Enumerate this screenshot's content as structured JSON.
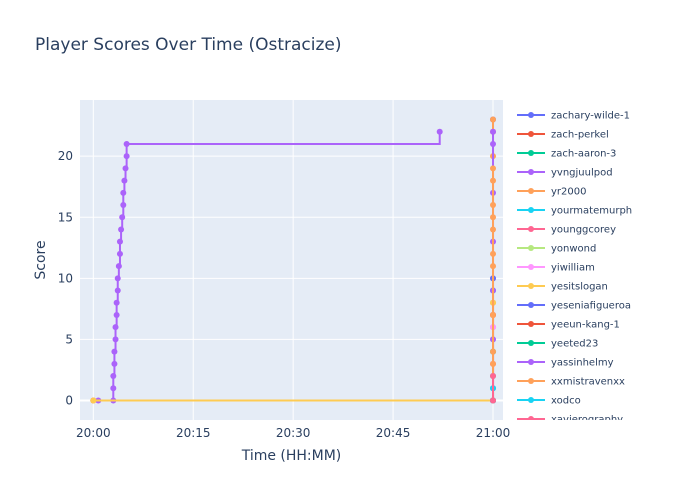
{
  "chart_data": {
    "type": "line",
    "title": "Player Scores Over Time (Ostracize)",
    "xlabel": "Time (HH:MM)",
    "ylabel": "Score",
    "x_unit": "time HH:MM",
    "xlim": [
      "19:58:00",
      "21:01:30"
    ],
    "ylim": [
      -1.6,
      24.6
    ],
    "x_ticks": [
      {
        "value": "20:00:00",
        "label": "20:00"
      },
      {
        "value": "20:15:00",
        "label": "20:15"
      },
      {
        "value": "20:30:00",
        "label": "20:30"
      },
      {
        "value": "20:45:00",
        "label": "20:45"
      },
      {
        "value": "21:00:00",
        "label": "21:00"
      }
    ],
    "y_ticks": [
      0,
      5,
      10,
      15,
      20
    ],
    "grid": true,
    "line_shape": "step",
    "legend_position": "right",
    "background_color": "#e5ecf6",
    "series": [
      {
        "name": "zachary-wilde-1",
        "color": "#636efa",
        "points": [
          [
            "21:00:00",
            0
          ],
          [
            "21:00:00",
            23
          ]
        ]
      },
      {
        "name": "zach-perkel",
        "color": "#ef553b",
        "points": [
          [
            "21:00:00",
            0
          ],
          [
            "21:00:00",
            7
          ]
        ]
      },
      {
        "name": "zach-aaron-3",
        "color": "#00cc96",
        "points": [
          [
            "21:00:00",
            0
          ],
          [
            "21:00:00",
            4
          ]
        ]
      },
      {
        "name": "yvngjuulpod",
        "color": "#ab63fa",
        "points": [
          [
            "20:00:00",
            0
          ],
          [
            "20:00:45",
            0
          ],
          [
            "20:03:00",
            0
          ],
          [
            "20:03:00",
            1
          ],
          [
            "20:03:00",
            2
          ],
          [
            "20:03:10",
            3
          ],
          [
            "20:03:10",
            4
          ],
          [
            "20:03:20",
            5
          ],
          [
            "20:03:20",
            6
          ],
          [
            "20:03:30",
            7
          ],
          [
            "20:03:30",
            8
          ],
          [
            "20:03:40",
            9
          ],
          [
            "20:03:40",
            10
          ],
          [
            "20:03:50",
            11
          ],
          [
            "20:04:00",
            12
          ],
          [
            "20:04:00",
            13
          ],
          [
            "20:04:10",
            14
          ],
          [
            "20:04:20",
            15
          ],
          [
            "20:04:30",
            16
          ],
          [
            "20:04:30",
            17
          ],
          [
            "20:04:40",
            18
          ],
          [
            "20:04:50",
            19
          ],
          [
            "20:05:00",
            20
          ],
          [
            "20:05:00",
            21
          ],
          [
            "20:52:00",
            22
          ]
        ]
      },
      {
        "name": "yr2000",
        "color": "#ffa15a",
        "points": [
          [
            "20:00:00",
            0
          ],
          [
            "21:00:00",
            0
          ],
          [
            "21:00:00",
            2
          ],
          [
            "21:00:00",
            4
          ],
          [
            "21:00:00",
            6
          ],
          [
            "21:00:00",
            8
          ],
          [
            "21:00:00",
            10
          ],
          [
            "21:00:00",
            12
          ],
          [
            "21:00:00",
            14
          ],
          [
            "21:00:00",
            16
          ],
          [
            "21:00:00",
            18
          ],
          [
            "21:00:00",
            20
          ],
          [
            "21:00:00",
            22
          ],
          [
            "21:00:00",
            23
          ]
        ]
      },
      {
        "name": "yourmatemurph",
        "color": "#19d3f3",
        "points": [
          [
            "21:00:00",
            0
          ],
          [
            "21:00:00",
            2
          ]
        ]
      },
      {
        "name": "younggcorey",
        "color": "#ff6692",
        "points": [
          [
            "21:00:00",
            0
          ],
          [
            "21:00:00",
            3
          ]
        ]
      },
      {
        "name": "yonwond",
        "color": "#b6e880",
        "points": [
          [
            "21:00:00",
            0
          ],
          [
            "21:00:00",
            5
          ]
        ]
      },
      {
        "name": "yiwilliam",
        "color": "#ff97ff",
        "points": [
          [
            "21:00:00",
            0
          ],
          [
            "21:00:00",
            6
          ]
        ]
      },
      {
        "name": "yesitslogan",
        "color": "#fecb52",
        "points": [
          [
            "20:00:00",
            0
          ],
          [
            "21:00:00",
            0
          ],
          [
            "21:00:00",
            8
          ]
        ]
      },
      {
        "name": "yeseniafigueroa",
        "color": "#636efa",
        "points": [
          [
            "21:00:00",
            0
          ],
          [
            "21:00:00",
            10
          ]
        ]
      },
      {
        "name": "yeeun-kang-1",
        "color": "#ef553b",
        "points": [
          [
            "21:00:00",
            0
          ],
          [
            "21:00:00",
            7
          ]
        ]
      },
      {
        "name": "yeeted23",
        "color": "#00cc96",
        "points": [
          [
            "21:00:00",
            0
          ],
          [
            "21:00:00",
            9
          ]
        ]
      },
      {
        "name": "yassinhelmy",
        "color": "#ab63fa",
        "points": [
          [
            "21:00:00",
            1
          ],
          [
            "21:00:00",
            5
          ],
          [
            "21:00:00",
            9
          ],
          [
            "21:00:00",
            13
          ],
          [
            "21:00:00",
            17
          ],
          [
            "21:00:00",
            21
          ],
          [
            "21:00:00",
            22
          ]
        ]
      },
      {
        "name": "xxmistravenxx",
        "color": "#ffa15a",
        "points": [
          [
            "21:00:00",
            0
          ],
          [
            "21:00:00",
            3
          ],
          [
            "21:00:00",
            7
          ],
          [
            "21:00:00",
            11
          ],
          [
            "21:00:00",
            15
          ],
          [
            "21:00:00",
            19
          ]
        ]
      },
      {
        "name": "xodco",
        "color": "#19d3f3",
        "points": [
          [
            "21:00:00",
            0
          ],
          [
            "21:00:00",
            1
          ]
        ]
      },
      {
        "name": "xavierography",
        "color": "#ff6692",
        "points": [
          [
            "21:00:00",
            0
          ],
          [
            "21:00:00",
            2
          ]
        ]
      }
    ]
  }
}
